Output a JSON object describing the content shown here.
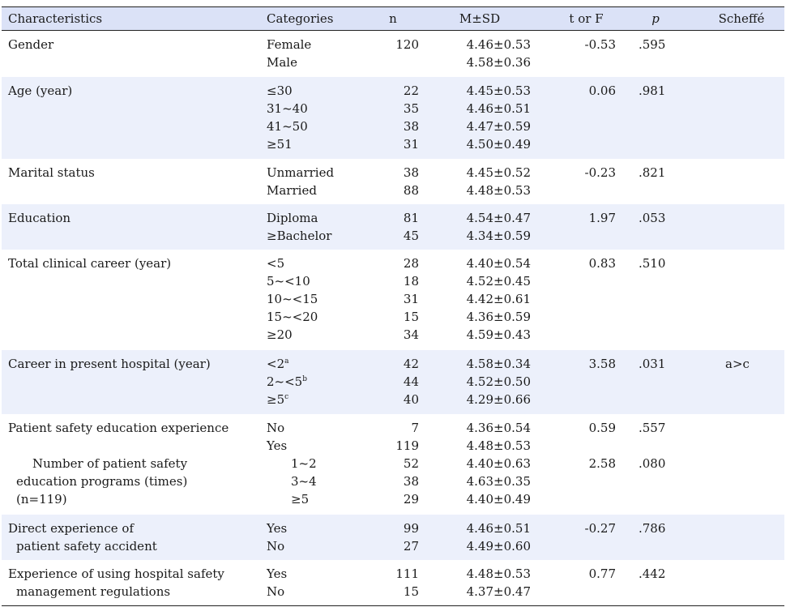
{
  "headers": {
    "characteristics": "Characteristics",
    "categories": "Categories",
    "n": "n",
    "msd": "M±SD",
    "tf": "t or F",
    "p": "p",
    "scheffe": "Scheffé"
  },
  "rows": [
    {
      "char_lines": [
        "Gender"
      ],
      "cats": [
        "Female",
        "Male"
      ],
      "n": [
        "120",
        ""
      ],
      "msd": [
        "4.46±0.53",
        "4.58±0.36"
      ],
      "tf": "-0.53",
      "p": ".595",
      "scheffe": ""
    },
    {
      "char_lines": [
        "Age (year)"
      ],
      "cats": [
        "≤30",
        "31~40",
        "41~50",
        "≥51"
      ],
      "n": [
        "22",
        "35",
        "38",
        "31"
      ],
      "msd": [
        "4.45±0.53",
        "4.46±0.51",
        "4.47±0.59",
        "4.50±0.49"
      ],
      "tf": "0.06",
      "p": ".981",
      "scheffe": ""
    },
    {
      "char_lines": [
        "Marital status"
      ],
      "cats": [
        "Unmarried",
        "Married"
      ],
      "n": [
        "38",
        "88"
      ],
      "msd": [
        "4.45±0.52",
        "4.48±0.53"
      ],
      "tf": "-0.23",
      "p": ".821",
      "scheffe": ""
    },
    {
      "char_lines": [
        "Education"
      ],
      "cats": [
        "Diploma",
        "≥Bachelor"
      ],
      "n": [
        "81",
        "45"
      ],
      "msd": [
        "4.54±0.47",
        "4.34±0.59"
      ],
      "tf": "1.97",
      "p": ".053",
      "scheffe": ""
    },
    {
      "char_lines": [
        "Total clinical career (year)"
      ],
      "cats": [
        "<5",
        "5~<10",
        "10~<15",
        "15~<20",
        "≥20"
      ],
      "n": [
        "28",
        "18",
        "31",
        "15",
        "34"
      ],
      "msd": [
        "4.40±0.54",
        "4.52±0.45",
        "4.42±0.61",
        "4.36±0.59",
        "4.59±0.43"
      ],
      "tf": "0.83",
      "p": ".510",
      "scheffe": ""
    },
    {
      "char_lines": [
        "Career in present hospital (year)"
      ],
      "cats": [
        "<2",
        "2~<5",
        "≥5"
      ],
      "cat_sups": [
        "a",
        "b",
        "c"
      ],
      "n": [
        "42",
        "44",
        "40"
      ],
      "msd": [
        "4.58±0.34",
        "4.52±0.50",
        "4.29±0.66"
      ],
      "tf": "3.58",
      "p": ".031",
      "scheffe": "a>c"
    },
    {
      "char_lines": [
        "Patient safety education experience"
      ],
      "cats": [
        "No",
        "Yes"
      ],
      "n": [
        "7",
        "119"
      ],
      "msd": [
        "4.36±0.54",
        "4.48±0.53"
      ],
      "tf": "0.59",
      "p": ".557",
      "scheffe": "",
      "sub": {
        "char_lines": [
          "Number of patient safety",
          "education programs (times)",
          "(n=119)"
        ],
        "cats": [
          "1~2",
          "3~4",
          "≥5"
        ],
        "n": [
          "52",
          "38",
          "29"
        ],
        "msd": [
          "4.40±0.63",
          "4.63±0.35",
          "4.40±0.49"
        ],
        "tf": "2.58",
        "p": ".080",
        "scheffe": ""
      }
    },
    {
      "char_lines": [
        "Direct experience of",
        "patient safety accident"
      ],
      "cats": [
        "Yes",
        "No"
      ],
      "n": [
        "99",
        "27"
      ],
      "msd": [
        "4.46±0.51",
        "4.49±0.60"
      ],
      "tf": "-0.27",
      "p": ".786",
      "scheffe": ""
    },
    {
      "char_lines": [
        "Experience of using hospital safety",
        "management regulations"
      ],
      "cats": [
        "Yes",
        "No"
      ],
      "n": [
        "111",
        "15"
      ],
      "msd": [
        "4.48±0.53",
        "4.37±0.47"
      ],
      "tf": "0.77",
      "p": ".442",
      "scheffe": ""
    }
  ]
}
